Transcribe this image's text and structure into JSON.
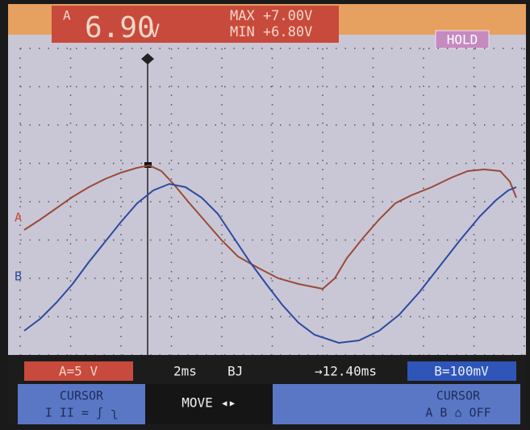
{
  "header": {
    "channel": "A",
    "reading": "6.90",
    "unit": "V",
    "max": "MAX +7.00V",
    "min": "MIN +6.80V",
    "hold": "HOLD"
  },
  "markers": {
    "a": "A",
    "b": "B"
  },
  "status": {
    "a_range": "A=5 V",
    "timebase": "2ms",
    "trigger": "BJ",
    "cursor_time": "→12.40ms",
    "b_range": "B=100mV"
  },
  "softkeys": [
    {
      "label": "CURSOR",
      "options": "I II = ʃ ʅ"
    },
    {
      "label": "MOVE ◂▸"
    },
    {
      "label": "CURSOR",
      "options": "A B ⌂ OFF"
    }
  ]
}
